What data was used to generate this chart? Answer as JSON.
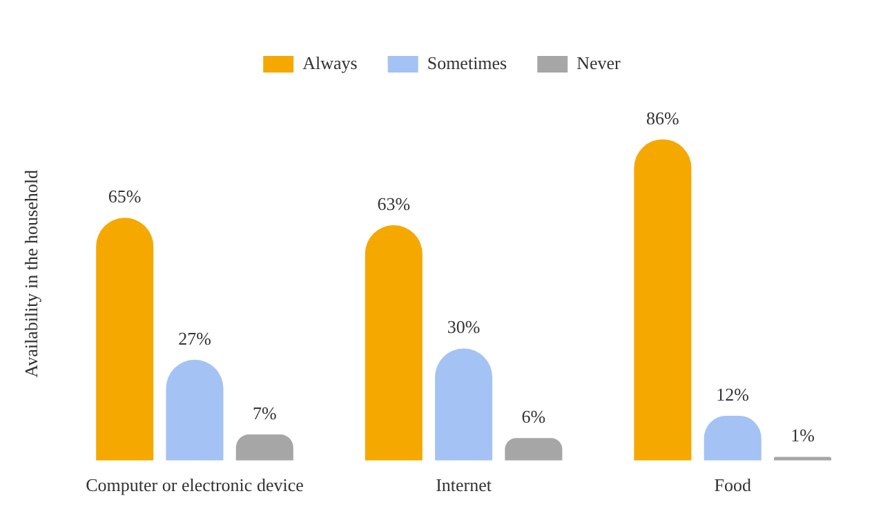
{
  "chart_data": {
    "type": "bar",
    "ylabel": "Availability in the household",
    "categories": [
      "Computer or electronic device",
      "Internet",
      "Food"
    ],
    "series": [
      {
        "name": "Always",
        "color": "#f5a800",
        "values": [
          65,
          63,
          86
        ],
        "value_labels": [
          "65%",
          "63%",
          "86%"
        ]
      },
      {
        "name": "Sometimes",
        "color": "#a4c2f4",
        "values": [
          27,
          30,
          12
        ],
        "value_labels": [
          "27%",
          "30%",
          "12%"
        ]
      },
      {
        "name": "Never",
        "color": "#a6a6a6",
        "values": [
          7,
          6,
          1
        ],
        "value_labels": [
          "7%",
          "6%",
          "1%"
        ]
      }
    ],
    "grid": false,
    "legend": "top",
    "tick_labels": "x"
  }
}
